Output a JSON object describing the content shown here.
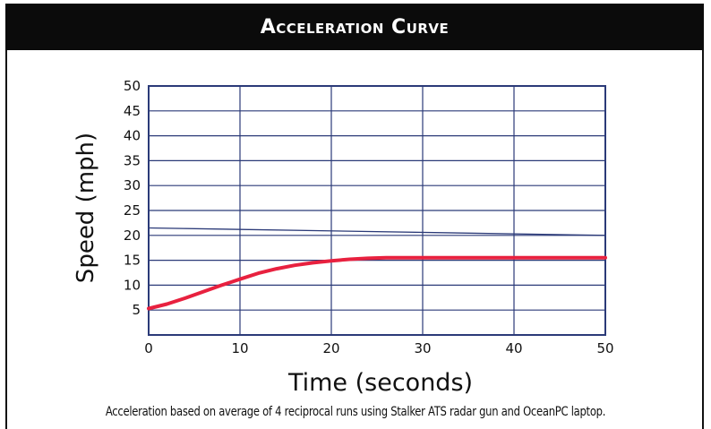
{
  "colors": {
    "header_bg": "#0b0b0b",
    "header_text": "#ffffff",
    "grid": "#2b3a78",
    "curve": "#e8213f",
    "reference_line": "#2b3a78"
  },
  "chart_data": {
    "type": "line",
    "title": "Acceleration Curve",
    "xlabel": "Time (seconds)",
    "ylabel": "Speed (mph)",
    "xlim": [
      0,
      50
    ],
    "ylim": [
      0,
      50
    ],
    "x_ticks": [
      "0",
      "10",
      "20",
      "30",
      "40",
      "50"
    ],
    "y_ticks": [
      "5",
      "10",
      "15",
      "20",
      "25",
      "30",
      "35",
      "40",
      "45",
      "50"
    ],
    "grid": true,
    "series": [
      {
        "name": "",
        "color": "#e8213f",
        "x": [
          0,
          2,
          4,
          6,
          8,
          10,
          12,
          14,
          16,
          18,
          20,
          22,
          24,
          26,
          28,
          30,
          35,
          40,
          45,
          50
        ],
        "y": [
          5.3,
          6.2,
          7.4,
          8.7,
          10.0,
          11.2,
          12.4,
          13.3,
          14.0,
          14.5,
          14.9,
          15.2,
          15.4,
          15.5,
          15.5,
          15.5,
          15.5,
          15.5,
          15.5,
          15.5
        ]
      },
      {
        "name": "",
        "color": "#2b3a78",
        "x": [
          0,
          50
        ],
        "y": [
          21.5,
          20.0
        ]
      }
    ],
    "caption": "Acceleration based on average of 4 reciprocal runs using Stalker ATS radar gun and OceanPC laptop."
  }
}
